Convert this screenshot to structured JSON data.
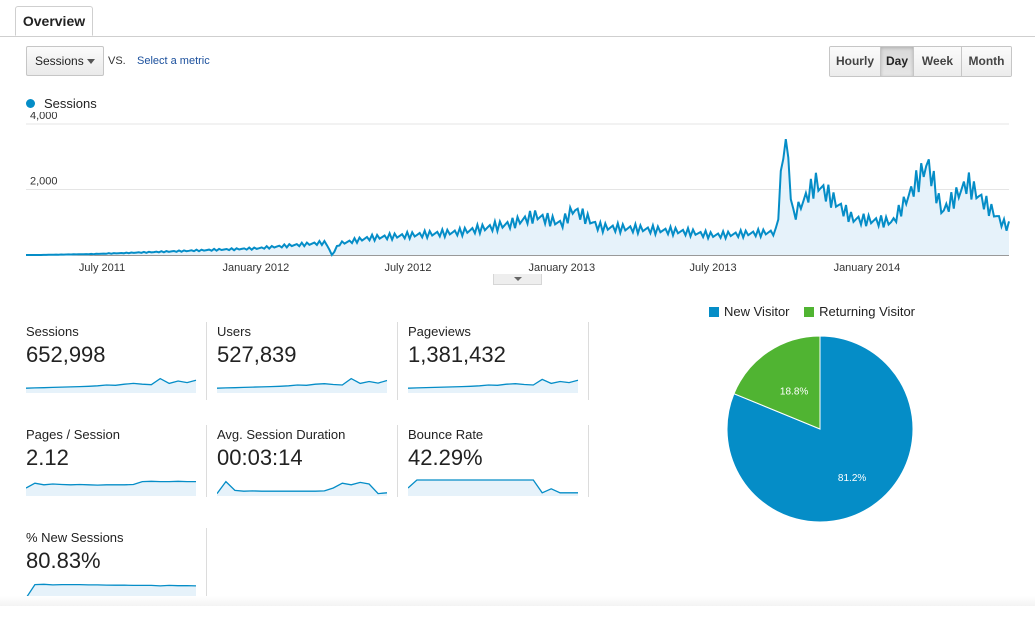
{
  "tabs": {
    "overview": "Overview"
  },
  "controls": {
    "metric_select": "Sessions",
    "vs": "VS.",
    "select_metric": "Select a metric",
    "granularity": [
      {
        "label": "Hourly",
        "active": false
      },
      {
        "label": "Day",
        "active": true
      },
      {
        "label": "Week",
        "active": false
      },
      {
        "label": "Month",
        "active": false
      }
    ]
  },
  "chart_data": [
    {
      "type": "area",
      "series": [
        {
          "name": "Sessions",
          "color": "#058dc7",
          "points": [
            [
              "2011-04-15",
              0
            ],
            [
              "2011-06-20",
              30
            ],
            [
              "2011-09-01",
              90
            ],
            [
              "2011-11-15",
              160
            ],
            [
              "2012-01-01",
              200
            ],
            [
              "2012-02-15",
              300
            ],
            [
              "2012-03-25",
              380
            ],
            [
              "2012-04-01",
              0
            ],
            [
              "2012-04-10",
              350
            ],
            [
              "2012-05-15",
              520
            ],
            [
              "2012-07-01",
              600
            ],
            [
              "2012-09-01",
              700
            ],
            [
              "2012-11-01",
              950
            ],
            [
              "2012-12-01",
              1200
            ],
            [
              "2013-01-01",
              950
            ],
            [
              "2013-01-15",
              1400
            ],
            [
              "2013-02-15",
              850
            ],
            [
              "2013-04-01",
              800
            ],
            [
              "2013-06-01",
              700
            ],
            [
              "2013-07-01",
              600
            ],
            [
              "2013-09-15",
              700
            ],
            [
              "2013-09-25",
              3800
            ],
            [
              "2013-10-05",
              1200
            ],
            [
              "2013-11-01",
              2200
            ],
            [
              "2013-12-15",
              1100
            ],
            [
              "2014-02-01",
              1000
            ],
            [
              "2014-03-15",
              2800
            ],
            [
              "2014-04-01",
              1300
            ],
            [
              "2014-05-01",
              2200
            ],
            [
              "2014-06-15",
              900
            ]
          ]
        }
      ],
      "xlabels": [
        "July 2011",
        "January 2012",
        "July 2012",
        "January 2013",
        "July 2013",
        "January 2014"
      ],
      "yticks": [
        "2,000",
        "4,000"
      ],
      "ylim": [
        0,
        4000
      ]
    },
    {
      "type": "pie",
      "legend": [
        "New Visitor",
        "Returning Visitor"
      ],
      "slices": [
        {
          "name": "New Visitor",
          "value": 81.2,
          "label": "81.2%",
          "color": "#058dc7"
        },
        {
          "name": "Returning Visitor",
          "value": 18.8,
          "label": "18.8%",
          "color": "#50b432"
        }
      ]
    }
  ],
  "metrics": [
    {
      "label": "Sessions",
      "value": "652,998",
      "trend": [
        0.3,
        0.32,
        0.33,
        0.35,
        0.37,
        0.38,
        0.4,
        0.42,
        0.45,
        0.5,
        0.48,
        0.55,
        0.6,
        0.55,
        0.52,
        0.9,
        0.6,
        0.75,
        0.65,
        0.8
      ]
    },
    {
      "label": "Users",
      "value": "527,839",
      "trend": [
        0.3,
        0.32,
        0.33,
        0.35,
        0.37,
        0.38,
        0.4,
        0.42,
        0.45,
        0.5,
        0.48,
        0.55,
        0.58,
        0.53,
        0.5,
        0.9,
        0.6,
        0.72,
        0.62,
        0.78
      ]
    },
    {
      "label": "Pageviews",
      "value": "1,381,432",
      "trend": [
        0.3,
        0.32,
        0.34,
        0.35,
        0.37,
        0.38,
        0.4,
        0.42,
        0.45,
        0.5,
        0.48,
        0.55,
        0.58,
        0.53,
        0.5,
        0.85,
        0.6,
        0.72,
        0.65,
        0.8
      ]
    },
    {
      "label": "Pages / Session",
      "value": "2.12",
      "trend": [
        0.5,
        0.8,
        0.7,
        0.75,
        0.72,
        0.7,
        0.72,
        0.7,
        0.68,
        0.7,
        0.7,
        0.7,
        0.72,
        0.9,
        0.92,
        0.9,
        0.9,
        0.92,
        0.9,
        0.9
      ]
    },
    {
      "label": "Avg. Session Duration",
      "value": "00:03:14",
      "trend": [
        0.15,
        0.9,
        0.35,
        0.3,
        0.32,
        0.3,
        0.3,
        0.3,
        0.3,
        0.3,
        0.3,
        0.3,
        0.32,
        0.5,
        0.8,
        0.7,
        0.85,
        0.75,
        0.15,
        0.2
      ]
    },
    {
      "label": "Bounce Rate",
      "value": "42.29%",
      "trend": [
        0.5,
        1.0,
        1.0,
        1.0,
        1.0,
        1.0,
        1.0,
        1.0,
        1.0,
        1.0,
        1.0,
        1.0,
        1.0,
        1.0,
        1.0,
        0.2,
        0.45,
        0.2,
        0.2,
        0.2
      ]
    },
    {
      "label": "% New Sessions",
      "value": "80.83%",
      "trend": [
        0.05,
        0.9,
        0.92,
        0.88,
        0.9,
        0.9,
        0.9,
        0.88,
        0.88,
        0.87,
        0.86,
        0.86,
        0.85,
        0.85,
        0.85,
        0.82,
        0.85,
        0.83,
        0.84,
        0.82
      ]
    }
  ]
}
